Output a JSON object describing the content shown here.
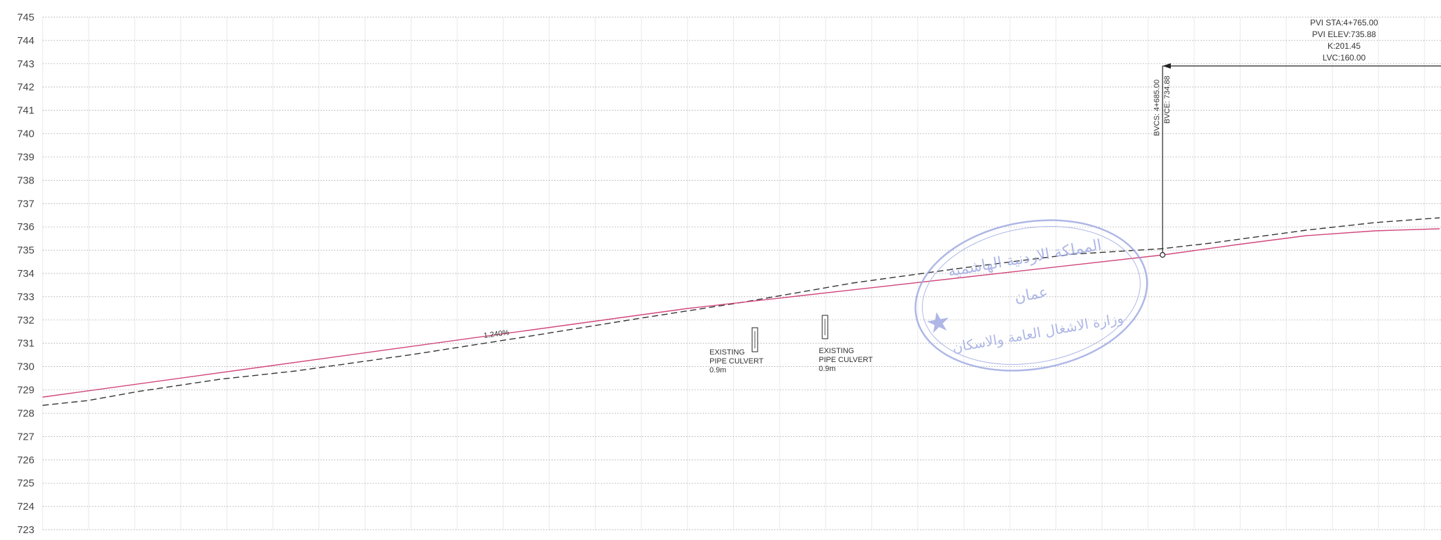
{
  "elevation_axis": {
    "min": 723,
    "max": 745,
    "ticks": [
      745,
      744,
      743,
      742,
      741,
      740,
      739,
      738,
      737,
      736,
      735,
      734,
      733,
      732,
      731,
      730,
      729,
      728,
      727,
      726,
      725,
      724,
      723
    ]
  },
  "design_profile": {
    "grade_label": "1.240%",
    "color": "#d0457a"
  },
  "existing_ground": {
    "color": "#333333"
  },
  "pvi": {
    "lines": [
      "PVI STA:4+765.00",
      "PVI ELEV:735.88",
      "K:201.45",
      "LVC:160.00"
    ]
  },
  "bvc": {
    "lines": [
      "BVCS: 4+685.00",
      "BVCE: 734.88"
    ]
  },
  "culverts": [
    {
      "lines": [
        "EXISTING",
        "PIPE CULVERT",
        "0.9m"
      ]
    },
    {
      "lines": [
        "EXISTING",
        "PIPE CULVERT",
        "0.9m"
      ]
    }
  ],
  "stamp": {
    "color": "#9aa6e0",
    "lines": [
      "المملكة الاردنية الهاشمية",
      "عمان",
      "وزارة الاشغال العامة والاسكان"
    ]
  }
}
